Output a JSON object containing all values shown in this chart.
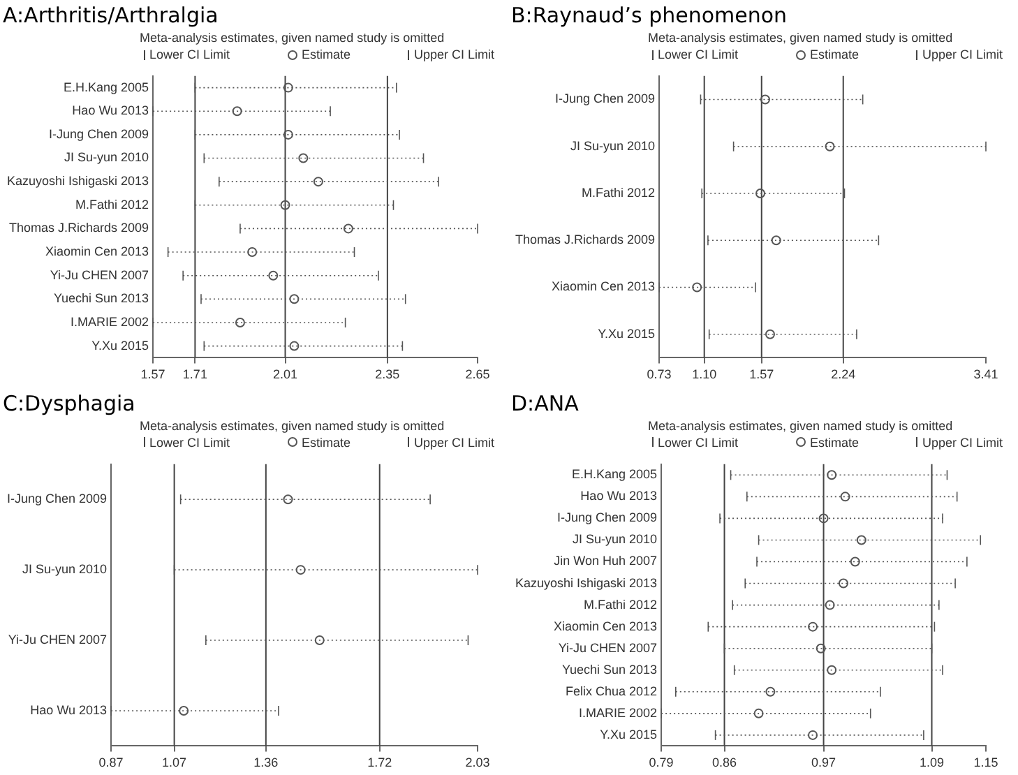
{
  "chart_data": [
    {
      "type": "scatter",
      "title": "A:Arthritis/Arthralgia",
      "subtitle": "Meta-analysis estimates, given named study is omitted",
      "orientation": "horizontal",
      "marker": "circle",
      "legend": "top",
      "grid": false,
      "categories": [
        "E.H.Kang 2005",
        "Hao Wu 2013",
        "I-Jung Chen 2009",
        "JI Su-yun 2010",
        "Kazuyoshi Ishigaski 2013",
        "M.Fathi 2012",
        "Thomas J.Richards 2009",
        "Xiaomin Cen 2013",
        "Yi-Ju CHEN 2007",
        "Yuechi Sun 2013",
        "I.MARIE 2002",
        "Y.Xu 2015"
      ],
      "series": [
        {
          "name": "Estimate",
          "color": "#555555",
          "values": [
            2.02,
            1.85,
            2.02,
            2.07,
            2.12,
            2.01,
            2.22,
            1.9,
            1.97,
            2.04,
            1.86,
            2.04
          ],
          "errors": [
            [
              1.71,
              2.38
            ],
            [
              1.57,
              2.16
            ],
            [
              1.71,
              2.39
            ],
            [
              1.74,
              2.47
            ],
            [
              1.79,
              2.52
            ],
            [
              1.71,
              2.37
            ],
            [
              1.86,
              2.65
            ],
            [
              1.62,
              2.24
            ],
            [
              1.67,
              2.32
            ],
            [
              1.73,
              2.41
            ],
            [
              1.57,
              2.21
            ],
            [
              1.74,
              2.4
            ]
          ]
        }
      ],
      "xlim": [
        1.57,
        2.65
      ],
      "xticks": [
        1.57,
        1.71,
        2.01,
        2.35,
        2.65
      ],
      "ref_lines": [
        {
          "axis": "x",
          "value": 1.71,
          "label": "Lower CI Limit",
          "color": "#444444"
        },
        {
          "axis": "x",
          "value": 2.01,
          "label": null,
          "color": "#444444"
        },
        {
          "axis": "x",
          "value": 2.35,
          "label": "Upper CI Limit",
          "color": "#444444"
        }
      ]
    },
    {
      "type": "scatter",
      "title": "B:Raynaud’s phenomenon",
      "subtitle": "Meta-analysis estimates, given named study is omitted",
      "orientation": "horizontal",
      "marker": "circle",
      "legend": "top",
      "grid": false,
      "categories": [
        "I-Jung Chen 2009",
        "JI Su-yun 2010",
        "M.Fathi 2012",
        "Thomas J.Richards 2009",
        "Xiaomin Cen 2013",
        "Y.Xu 2015"
      ],
      "series": [
        {
          "name": "Estimate",
          "color": "#555555",
          "values": [
            1.6,
            2.13,
            1.56,
            1.69,
            1.04,
            1.64
          ],
          "errors": [
            [
              1.07,
              2.4
            ],
            [
              1.34,
              3.41
            ],
            [
              1.08,
              2.25
            ],
            [
              1.13,
              2.53
            ],
            [
              0.73,
              1.52
            ],
            [
              1.14,
              2.35
            ]
          ]
        }
      ],
      "xlim": [
        0.73,
        3.41
      ],
      "xticks": [
        0.73,
        "1.10",
        1.57,
        2.24,
        3.41
      ],
      "ref_lines": [
        {
          "axis": "x",
          "value": 1.1,
          "label": "Lower CI Limit",
          "color": "#444444"
        },
        {
          "axis": "x",
          "value": 1.57,
          "label": null,
          "color": "#444444"
        },
        {
          "axis": "x",
          "value": 2.24,
          "label": "Upper CI Limit",
          "color": "#444444"
        }
      ]
    },
    {
      "type": "scatter",
      "title": "C:Dysphagia",
      "subtitle": "Meta-analysis estimates, given named study is omitted",
      "orientation": "horizontal",
      "marker": "circle",
      "legend": "top",
      "grid": false,
      "categories": [
        "I-Jung Chen 2009",
        "JI Su-yun 2010",
        "Yi-Ju CHEN 2007",
        "Hao Wu 2013"
      ],
      "series": [
        {
          "name": "Estimate",
          "color": "#555555",
          "values": [
            1.43,
            1.47,
            1.53,
            1.1
          ],
          "errors": [
            [
              1.09,
              1.88
            ],
            [
              1.07,
              2.03
            ],
            [
              1.17,
              2.0
            ],
            [
              0.87,
              1.4
            ]
          ]
        }
      ],
      "xlim": [
        0.87,
        2.03
      ],
      "xticks": [
        0.87,
        1.07,
        1.36,
        1.72,
        2.03
      ],
      "ref_lines": [
        {
          "axis": "x",
          "value": 1.07,
          "label": "Lower CI Limit",
          "color": "#444444"
        },
        {
          "axis": "x",
          "value": 1.36,
          "label": null,
          "color": "#444444"
        },
        {
          "axis": "x",
          "value": 1.72,
          "label": "Upper CI Limit",
          "color": "#444444"
        }
      ]
    },
    {
      "type": "scatter",
      "title": "D:ANA",
      "subtitle": "Meta-analysis estimates, given named study is omitted",
      "orientation": "horizontal",
      "marker": "circle",
      "legend": "top",
      "grid": false,
      "categories": [
        "E.H.Kang 2005",
        "Hao Wu 2013",
        "I-Jung Chen 2009",
        "JI Su-yun 2010",
        "Jin Won Huh 2007",
        "Kazuyoshi Ishigaski 2013",
        "M.Fathi 2012",
        "Xiaomin Cen 2013",
        "Yi-Ju CHEN 2007",
        "Yuechi Sun 2013",
        "Felix Chua 2012",
        "I.MARIE 2002",
        "Y.Xu 2015"
      ],
      "series": [
        {
          "name": "Estimate",
          "color": "#555555",
          "values": [
            0.979,
            0.994,
            0.97,
            1.012,
            1.005,
            0.992,
            0.977,
            0.958,
            0.967,
            0.979,
            0.911,
            0.898,
            0.958
          ],
          "errors": [
            [
              0.867,
              1.107
            ],
            [
              0.885,
              1.118
            ],
            [
              0.855,
              1.102
            ],
            [
              0.898,
              1.144
            ],
            [
              0.896,
              1.129
            ],
            [
              0.883,
              1.116
            ],
            [
              0.869,
              1.098
            ],
            [
              0.842,
              1.093
            ],
            [
              0.86,
              1.09
            ],
            [
              0.871,
              1.102
            ],
            [
              0.806,
              1.033
            ],
            [
              0.79,
              1.022
            ],
            [
              0.85,
              1.081
            ]
          ]
        }
      ],
      "xlim": [
        0.79,
        1.15
      ],
      "xticks": [
        0.79,
        0.86,
        0.97,
        1.09,
        1.15
      ],
      "ref_lines": [
        {
          "axis": "x",
          "value": 0.86,
          "label": "Lower CI Limit",
          "color": "#444444"
        },
        {
          "axis": "x",
          "value": 0.97,
          "label": null,
          "color": "#444444"
        },
        {
          "axis": "x",
          "value": 1.09,
          "label": "Upper CI Limit",
          "color": "#444444"
        }
      ]
    }
  ]
}
